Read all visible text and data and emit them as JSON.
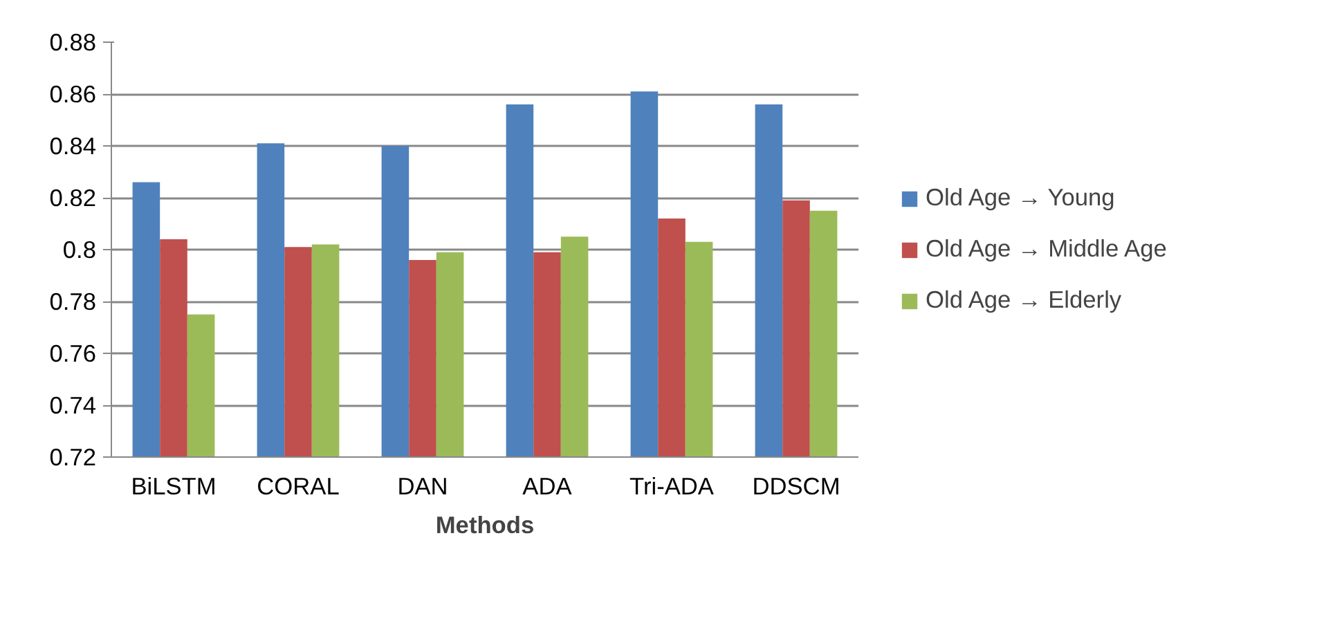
{
  "chart_data": {
    "type": "bar",
    "xlabel": "Methods",
    "categories": [
      "BiLSTM",
      "CORAL",
      "DAN",
      "ADA",
      "Tri-ADA",
      "DDSCM"
    ],
    "series": [
      {
        "name": "Old Age → Young",
        "color": "#4f81bd",
        "values": [
          0.826,
          0.841,
          0.84,
          0.856,
          0.861,
          0.856
        ]
      },
      {
        "name": "Old Age → Middle Age",
        "color": "#c0504d",
        "values": [
          0.804,
          0.801,
          0.796,
          0.799,
          0.812,
          0.819
        ]
      },
      {
        "name": "Old Age → Elderly",
        "color": "#9bbb59",
        "values": [
          0.775,
          0.802,
          0.799,
          0.805,
          0.803,
          0.815
        ]
      }
    ],
    "ylim": [
      0.72,
      0.88
    ],
    "yticks": [
      0.72,
      0.74,
      0.76,
      0.78,
      {
        "value": 0.8,
        "label": "0.8"
      },
      0.82,
      0.84,
      0.86,
      0.88
    ],
    "grid": "y",
    "legend": "right"
  }
}
